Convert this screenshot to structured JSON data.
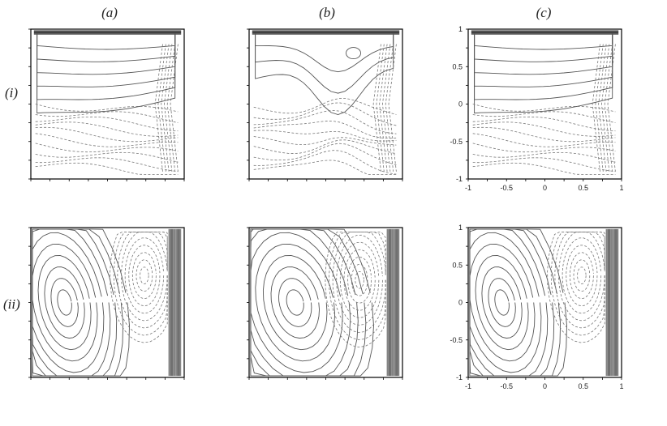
{
  "columns": [
    {
      "label": "(a)"
    },
    {
      "label": "(b)"
    },
    {
      "label": "(c)"
    }
  ],
  "rows": [
    {
      "label": "(i)"
    },
    {
      "label": "(ii)"
    }
  ],
  "axes": {
    "y_ticks": [
      "1",
      "0.5",
      "0",
      "-0.5",
      "-1"
    ],
    "x_ticks": [
      "-1",
      "-0.5",
      "0",
      "0.5",
      "1"
    ]
  },
  "panels": [
    {
      "id": "i-a",
      "row": 0,
      "col": 0,
      "pattern": "lid",
      "variant": "a",
      "tick_labels": false
    },
    {
      "id": "i-b",
      "row": 0,
      "col": 1,
      "pattern": "lid",
      "variant": "b",
      "tick_labels": false
    },
    {
      "id": "i-c",
      "row": 0,
      "col": 2,
      "pattern": "lid",
      "variant": "a",
      "tick_labels": true
    },
    {
      "id": "ii-a",
      "row": 1,
      "col": 0,
      "pattern": "wall",
      "variant": "a",
      "tick_labels": false
    },
    {
      "id": "ii-b",
      "row": 1,
      "col": 1,
      "pattern": "wall",
      "variant": "b",
      "tick_labels": false
    },
    {
      "id": "ii-c",
      "row": 1,
      "col": 2,
      "pattern": "wall",
      "variant": "a",
      "tick_labels": true
    }
  ]
}
